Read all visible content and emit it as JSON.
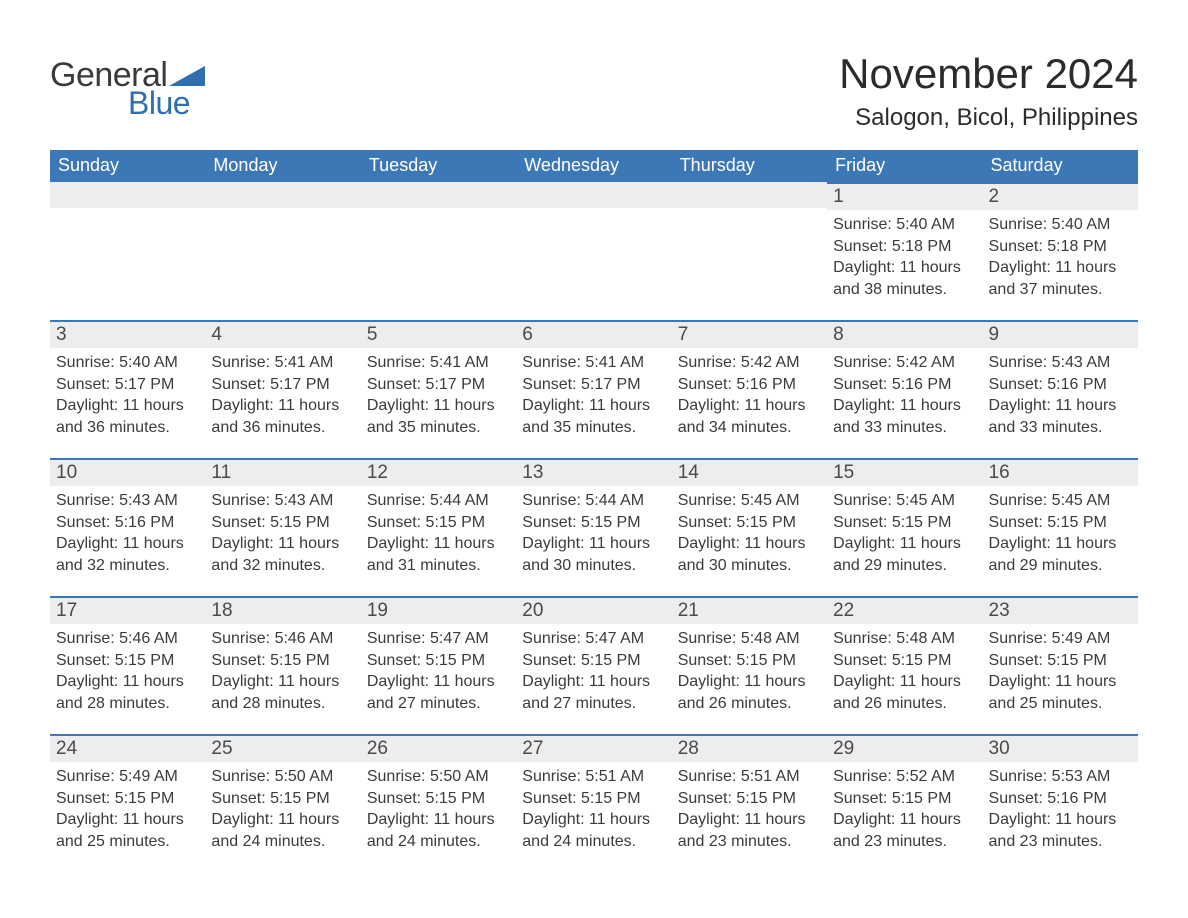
{
  "logo": {
    "text_general": "General",
    "text_blue": "Blue",
    "triangle_color": "#2f6fb0"
  },
  "title": {
    "month_year": "November 2024",
    "location": "Salogon, Bicol, Philippines"
  },
  "colors": {
    "header_bg": "#3b78b5",
    "header_text": "#ffffff",
    "day_row_bg": "#ededed",
    "day_border_top": "#3b78b5",
    "body_text": "#3b3b3b",
    "page_bg": "#ffffff"
  },
  "day_labels": [
    "Sunday",
    "Monday",
    "Tuesday",
    "Wednesday",
    "Thursday",
    "Friday",
    "Saturday"
  ],
  "label_prefix": {
    "sunrise": "Sunrise: ",
    "sunset": "Sunset: ",
    "daylight": "Daylight: "
  },
  "weeks": [
    [
      null,
      null,
      null,
      null,
      null,
      {
        "day": "1",
        "sunrise": "5:40 AM",
        "sunset": "5:18 PM",
        "daylight": "11 hours and 38 minutes."
      },
      {
        "day": "2",
        "sunrise": "5:40 AM",
        "sunset": "5:18 PM",
        "daylight": "11 hours and 37 minutes."
      }
    ],
    [
      {
        "day": "3",
        "sunrise": "5:40 AM",
        "sunset": "5:17 PM",
        "daylight": "11 hours and 36 minutes."
      },
      {
        "day": "4",
        "sunrise": "5:41 AM",
        "sunset": "5:17 PM",
        "daylight": "11 hours and 36 minutes."
      },
      {
        "day": "5",
        "sunrise": "5:41 AM",
        "sunset": "5:17 PM",
        "daylight": "11 hours and 35 minutes."
      },
      {
        "day": "6",
        "sunrise": "5:41 AM",
        "sunset": "5:17 PM",
        "daylight": "11 hours and 35 minutes."
      },
      {
        "day": "7",
        "sunrise": "5:42 AM",
        "sunset": "5:16 PM",
        "daylight": "11 hours and 34 minutes."
      },
      {
        "day": "8",
        "sunrise": "5:42 AM",
        "sunset": "5:16 PM",
        "daylight": "11 hours and 33 minutes."
      },
      {
        "day": "9",
        "sunrise": "5:43 AM",
        "sunset": "5:16 PM",
        "daylight": "11 hours and 33 minutes."
      }
    ],
    [
      {
        "day": "10",
        "sunrise": "5:43 AM",
        "sunset": "5:16 PM",
        "daylight": "11 hours and 32 minutes."
      },
      {
        "day": "11",
        "sunrise": "5:43 AM",
        "sunset": "5:15 PM",
        "daylight": "11 hours and 32 minutes."
      },
      {
        "day": "12",
        "sunrise": "5:44 AM",
        "sunset": "5:15 PM",
        "daylight": "11 hours and 31 minutes."
      },
      {
        "day": "13",
        "sunrise": "5:44 AM",
        "sunset": "5:15 PM",
        "daylight": "11 hours and 30 minutes."
      },
      {
        "day": "14",
        "sunrise": "5:45 AM",
        "sunset": "5:15 PM",
        "daylight": "11 hours and 30 minutes."
      },
      {
        "day": "15",
        "sunrise": "5:45 AM",
        "sunset": "5:15 PM",
        "daylight": "11 hours and 29 minutes."
      },
      {
        "day": "16",
        "sunrise": "5:45 AM",
        "sunset": "5:15 PM",
        "daylight": "11 hours and 29 minutes."
      }
    ],
    [
      {
        "day": "17",
        "sunrise": "5:46 AM",
        "sunset": "5:15 PM",
        "daylight": "11 hours and 28 minutes."
      },
      {
        "day": "18",
        "sunrise": "5:46 AM",
        "sunset": "5:15 PM",
        "daylight": "11 hours and 28 minutes."
      },
      {
        "day": "19",
        "sunrise": "5:47 AM",
        "sunset": "5:15 PM",
        "daylight": "11 hours and 27 minutes."
      },
      {
        "day": "20",
        "sunrise": "5:47 AM",
        "sunset": "5:15 PM",
        "daylight": "11 hours and 27 minutes."
      },
      {
        "day": "21",
        "sunrise": "5:48 AM",
        "sunset": "5:15 PM",
        "daylight": "11 hours and 26 minutes."
      },
      {
        "day": "22",
        "sunrise": "5:48 AM",
        "sunset": "5:15 PM",
        "daylight": "11 hours and 26 minutes."
      },
      {
        "day": "23",
        "sunrise": "5:49 AM",
        "sunset": "5:15 PM",
        "daylight": "11 hours and 25 minutes."
      }
    ],
    [
      {
        "day": "24",
        "sunrise": "5:49 AM",
        "sunset": "5:15 PM",
        "daylight": "11 hours and 25 minutes."
      },
      {
        "day": "25",
        "sunrise": "5:50 AM",
        "sunset": "5:15 PM",
        "daylight": "11 hours and 24 minutes."
      },
      {
        "day": "26",
        "sunrise": "5:50 AM",
        "sunset": "5:15 PM",
        "daylight": "11 hours and 24 minutes."
      },
      {
        "day": "27",
        "sunrise": "5:51 AM",
        "sunset": "5:15 PM",
        "daylight": "11 hours and 24 minutes."
      },
      {
        "day": "28",
        "sunrise": "5:51 AM",
        "sunset": "5:15 PM",
        "daylight": "11 hours and 23 minutes."
      },
      {
        "day": "29",
        "sunrise": "5:52 AM",
        "sunset": "5:15 PM",
        "daylight": "11 hours and 23 minutes."
      },
      {
        "day": "30",
        "sunrise": "5:53 AM",
        "sunset": "5:16 PM",
        "daylight": "11 hours and 23 minutes."
      }
    ]
  ]
}
